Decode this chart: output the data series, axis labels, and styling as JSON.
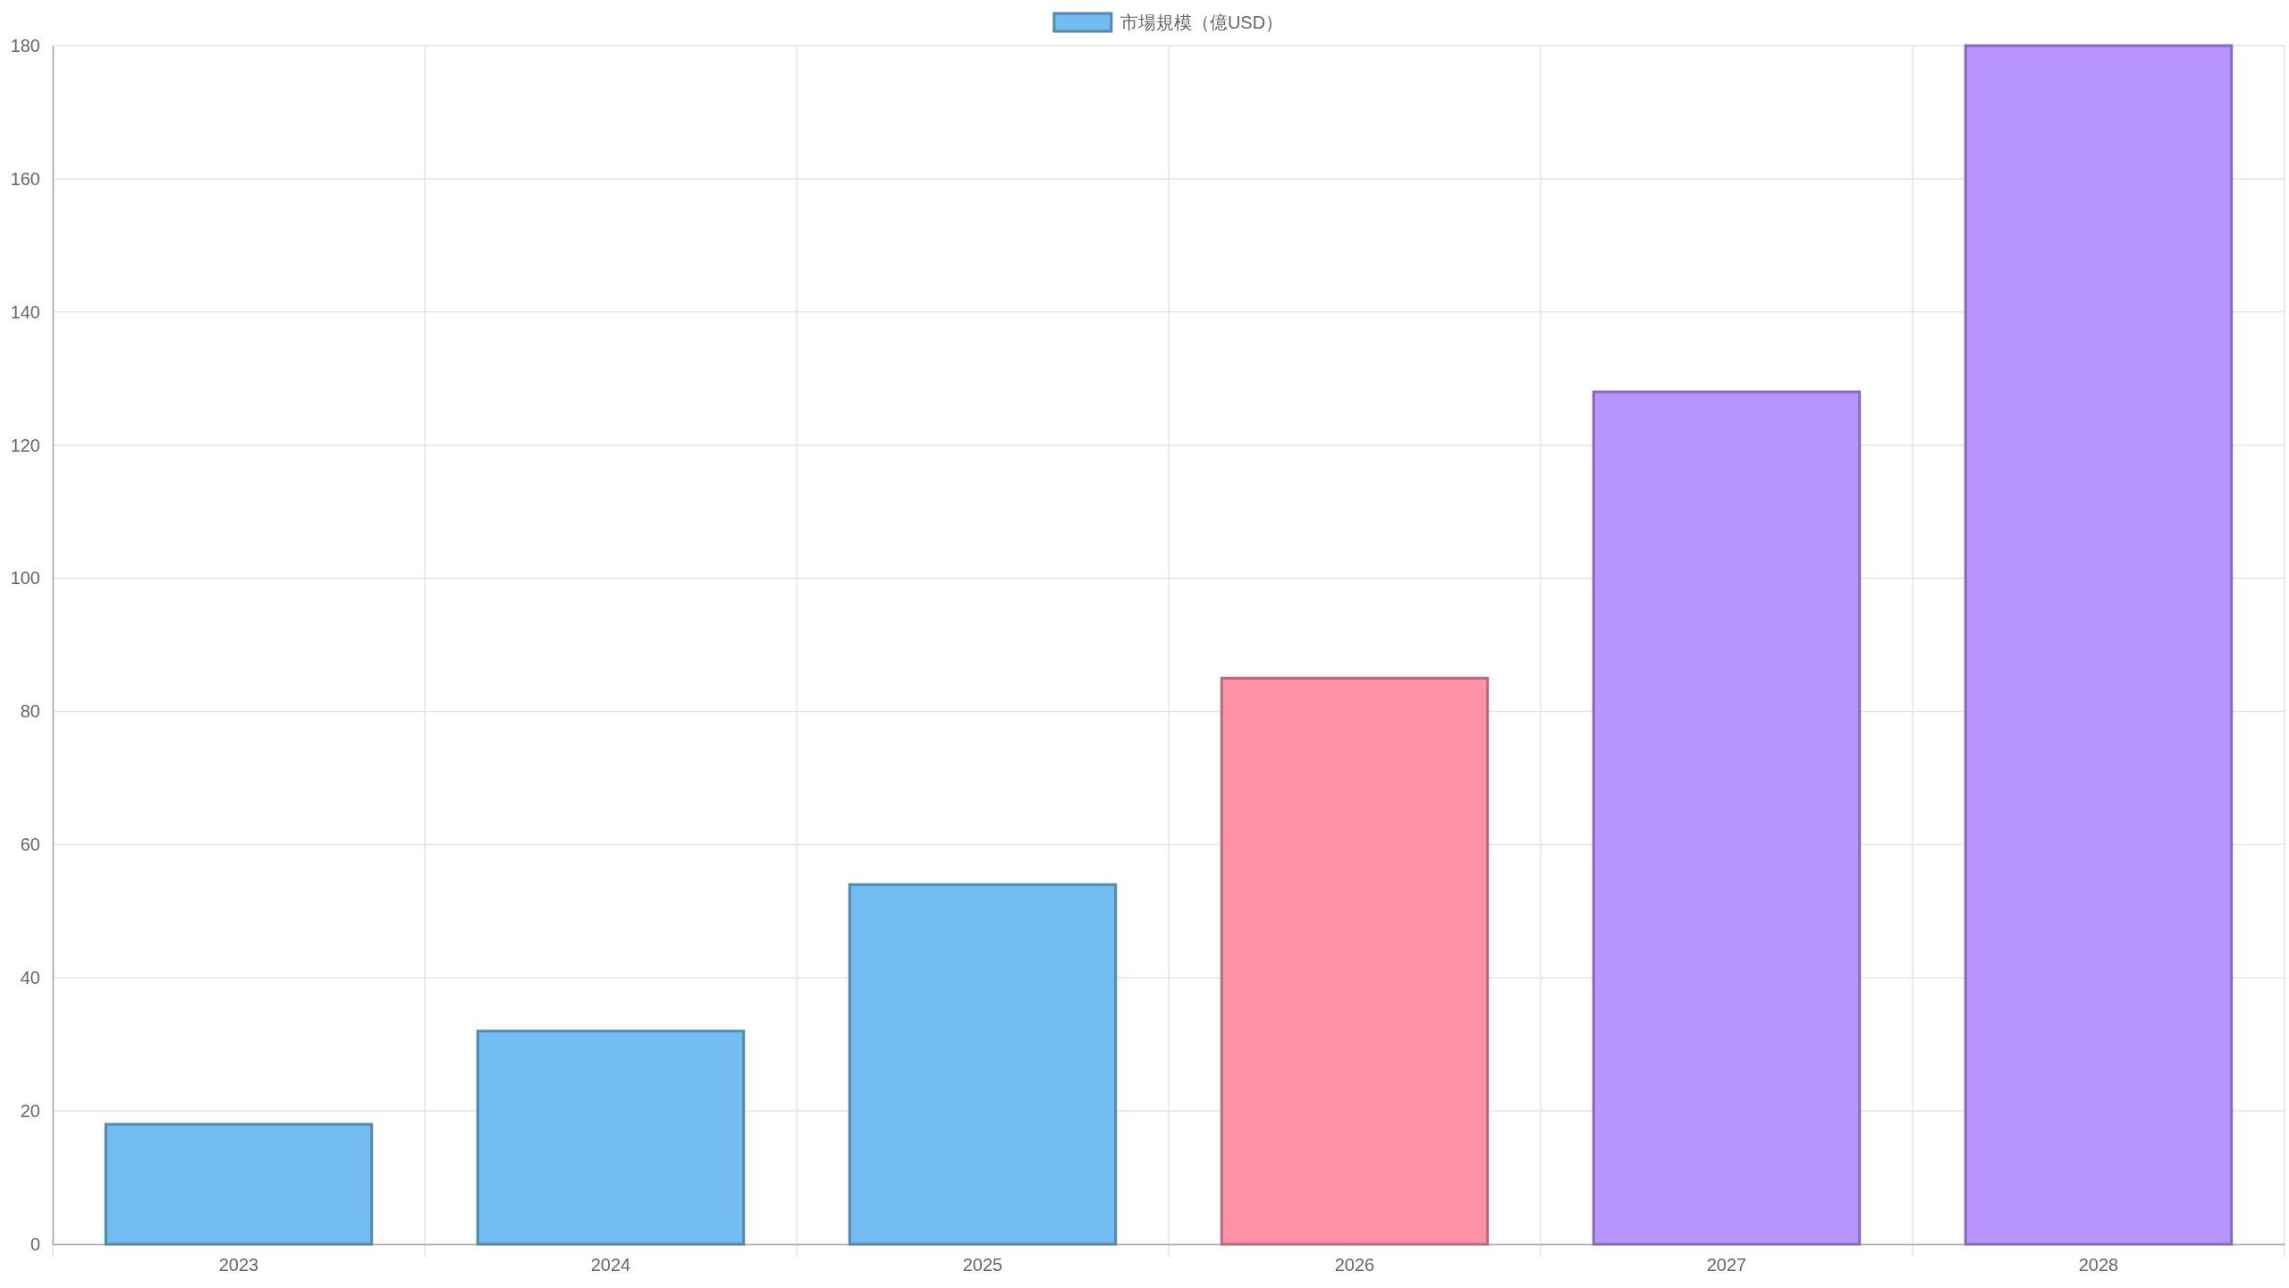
{
  "chart_data": {
    "type": "bar",
    "categories": [
      "2023",
      "2024",
      "2025",
      "2026",
      "2027",
      "2028"
    ],
    "series": [
      {
        "name": "市場規模（億USD）",
        "color": "#72bcf1",
        "colors": [
          "#72bcf1",
          "#72bcf1",
          "#72bcf1",
          "#ff92a9",
          "#b894ff",
          "#b894ff"
        ],
        "values": [
          18,
          32,
          54,
          85,
          128,
          180
        ]
      }
    ],
    "ylim": [
      0,
      180
    ],
    "yticks": [
      0,
      20,
      40,
      60,
      80,
      100,
      120,
      140,
      160,
      180
    ],
    "grid": true,
    "legend": "top"
  }
}
